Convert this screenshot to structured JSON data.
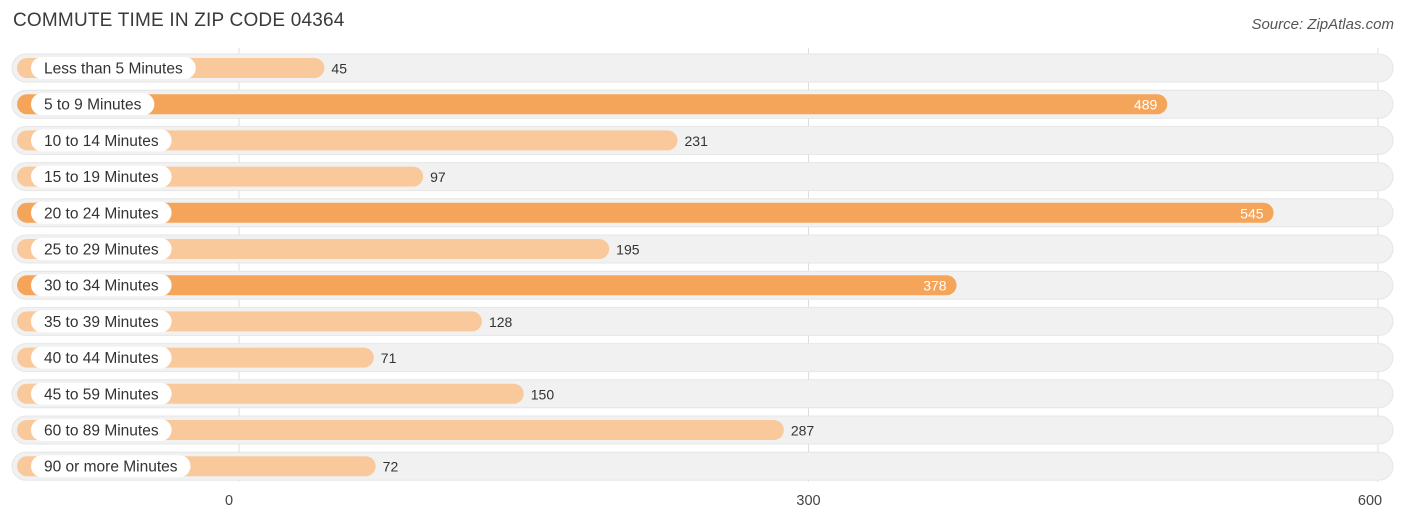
{
  "title": "COMMUTE TIME IN ZIP CODE 04364",
  "source": "Source: ZipAtlas.com",
  "colors": {
    "bar_dark": "#f5a55a",
    "bar_light": "#f9c99c",
    "track": "#f1f1f1",
    "grid": "#dddddd"
  },
  "chart_data": {
    "type": "bar",
    "orientation": "horizontal",
    "title": "COMMUTE TIME IN ZIP CODE 04364",
    "categories": [
      "Less than 5 Minutes",
      "5 to 9 Minutes",
      "10 to 14 Minutes",
      "15 to 19 Minutes",
      "20 to 24 Minutes",
      "25 to 29 Minutes",
      "30 to 34 Minutes",
      "35 to 39 Minutes",
      "40 to 44 Minutes",
      "45 to 59 Minutes",
      "60 to 89 Minutes",
      "90 or more Minutes"
    ],
    "values": [
      45,
      489,
      231,
      97,
      545,
      195,
      378,
      128,
      71,
      150,
      287,
      72
    ],
    "value_labels": [
      "45",
      "489",
      "231",
      "97",
      "545",
      "195",
      "378",
      "128",
      "71",
      "150",
      "287",
      "72"
    ],
    "xlim": [
      0,
      600
    ],
    "xticks": [
      0,
      300,
      600
    ],
    "xtick_labels": [
      "0",
      "300",
      "600"
    ],
    "grid": true,
    "legend": "none"
  }
}
